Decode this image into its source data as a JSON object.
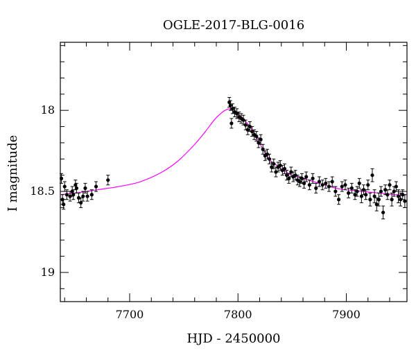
{
  "chart_data": {
    "type": "scatter",
    "title": "OGLE-2017-BLG-0016",
    "xlabel": "HJD - 2450000",
    "ylabel": "I magnitude",
    "xlim": [
      7636,
      7956
    ],
    "ylim": [
      19.18,
      17.58
    ],
    "y_inverted": true,
    "grid": false,
    "legend": "none",
    "x_ticks_major": [
      7700,
      7800,
      7900
    ],
    "y_ticks_major": [
      18,
      18.5,
      19
    ],
    "x_tick_labels": [
      "7700",
      "7800",
      "7900"
    ],
    "y_tick_labels": [
      "18",
      "18.5",
      "19"
    ],
    "colors": {
      "data": "#000000",
      "model": "#ff00ff",
      "axes": "#000000"
    },
    "series": [
      {
        "kind": "points",
        "x": [
          7637,
          7638,
          7639,
          7640,
          7642,
          7645,
          7647,
          7648,
          7650,
          7651,
          7653,
          7655,
          7657,
          7659,
          7661,
          7665,
          7669,
          7680,
          7792,
          7793,
          7794,
          7795,
          7797,
          7799,
          7801,
          7803,
          7805,
          7807,
          7809,
          7811,
          7813,
          7815,
          7817,
          7819,
          7821,
          7823,
          7825,
          7827,
          7829,
          7831,
          7833,
          7835,
          7837,
          7839,
          7841,
          7843,
          7845,
          7847,
          7849,
          7851,
          7853,
          7855,
          7857,
          7859,
          7861,
          7863,
          7866,
          7869,
          7872,
          7875,
          7878,
          7881,
          7884,
          7887,
          7890,
          7893,
          7896,
          7899,
          7902,
          7905,
          7908,
          7910,
          7912,
          7914,
          7916,
          7918,
          7920,
          7922,
          7924,
          7926,
          7928,
          7930,
          7932,
          7934,
          7936,
          7938,
          7940,
          7942,
          7944,
          7946,
          7948,
          7950,
          7952,
          7954
        ],
        "y": [
          18.42,
          18.55,
          18.58,
          18.47,
          18.52,
          18.53,
          18.5,
          18.52,
          18.46,
          18.48,
          18.54,
          18.57,
          18.53,
          18.48,
          18.53,
          18.52,
          18.47,
          18.43,
          17.95,
          17.97,
          18.08,
          17.99,
          18.01,
          18.02,
          18.04,
          18.05,
          18.06,
          18.09,
          18.12,
          18.1,
          18.13,
          18.15,
          18.16,
          18.2,
          18.18,
          18.24,
          18.28,
          18.27,
          18.3,
          18.35,
          18.33,
          18.38,
          18.35,
          18.34,
          18.37,
          18.36,
          18.4,
          18.42,
          18.38,
          18.41,
          18.4,
          18.43,
          18.44,
          18.42,
          18.45,
          18.41,
          18.46,
          18.42,
          18.48,
          18.44,
          18.46,
          18.45,
          18.47,
          18.44,
          18.5,
          18.55,
          18.47,
          18.46,
          18.51,
          18.48,
          18.52,
          18.5,
          18.45,
          18.53,
          18.49,
          18.52,
          18.46,
          18.55,
          18.4,
          18.53,
          18.58,
          18.55,
          18.5,
          18.63,
          18.49,
          18.52,
          18.46,
          18.55,
          18.5,
          18.47,
          18.53,
          18.55,
          18.52,
          18.56
        ],
        "err": [
          0.03,
          0.03,
          0.03,
          0.03,
          0.03,
          0.03,
          0.03,
          0.03,
          0.03,
          0.03,
          0.03,
          0.03,
          0.03,
          0.03,
          0.03,
          0.03,
          0.03,
          0.03,
          0.03,
          0.03,
          0.03,
          0.03,
          0.03,
          0.03,
          0.03,
          0.03,
          0.03,
          0.03,
          0.03,
          0.03,
          0.03,
          0.03,
          0.03,
          0.03,
          0.03,
          0.03,
          0.03,
          0.03,
          0.03,
          0.03,
          0.03,
          0.03,
          0.03,
          0.03,
          0.03,
          0.03,
          0.03,
          0.03,
          0.03,
          0.03,
          0.03,
          0.03,
          0.03,
          0.03,
          0.03,
          0.03,
          0.03,
          0.03,
          0.03,
          0.03,
          0.03,
          0.03,
          0.03,
          0.03,
          0.03,
          0.03,
          0.03,
          0.03,
          0.03,
          0.03,
          0.03,
          0.03,
          0.03,
          0.04,
          0.03,
          0.03,
          0.03,
          0.04,
          0.04,
          0.04,
          0.04,
          0.04,
          0.03,
          0.04,
          0.03,
          0.03,
          0.03,
          0.04,
          0.03,
          0.03,
          0.04,
          0.04,
          0.03,
          0.04
        ]
      },
      {
        "kind": "model",
        "x": [
          7636,
          7650,
          7670,
          7690,
          7710,
          7730,
          7745,
          7760,
          7770,
          7778,
          7784,
          7788,
          7792,
          7796,
          7800,
          7806,
          7812,
          7818,
          7824,
          7830,
          7836,
          7842,
          7850,
          7860,
          7870,
          7880,
          7890,
          7900,
          7915,
          7930,
          7945,
          7956
        ],
        "y": [
          18.52,
          18.51,
          18.49,
          18.47,
          18.44,
          18.38,
          18.31,
          18.21,
          18.13,
          18.06,
          18.02,
          18.0,
          17.99,
          18.0,
          18.02,
          18.06,
          18.11,
          18.18,
          18.25,
          18.31,
          18.34,
          18.37,
          18.4,
          18.42,
          18.44,
          18.46,
          18.48,
          18.49,
          18.5,
          18.51,
          18.52,
          18.52
        ]
      }
    ]
  }
}
